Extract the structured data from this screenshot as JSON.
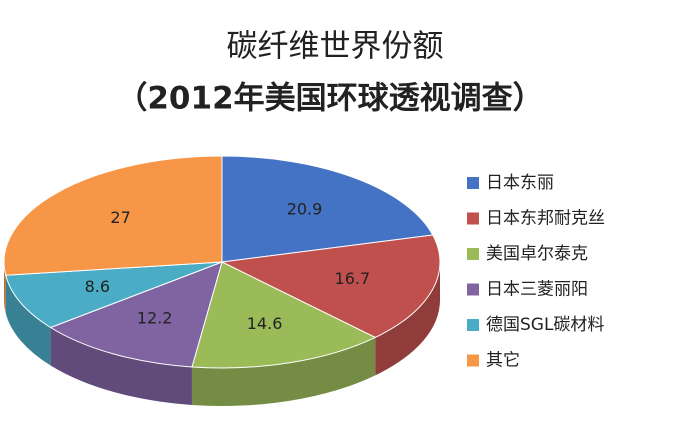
{
  "chart_data": {
    "type": "pie",
    "title": "碳纤维世界份额",
    "subtitle": "（2012年美国环球透视调查）",
    "categories": [
      "日本东丽",
      "日本东邦耐克丝",
      "美国卓尔泰克",
      "日本三菱丽阳",
      "德国SGL碳材料",
      "其它"
    ],
    "values": [
      20.9,
      16.7,
      14.6,
      12.2,
      8.6,
      27
    ],
    "colors": [
      "#4472c4",
      "#c0504d",
      "#9bbb59",
      "#8064a2",
      "#4bacc6",
      "#f79646"
    ],
    "legend": "right"
  }
}
